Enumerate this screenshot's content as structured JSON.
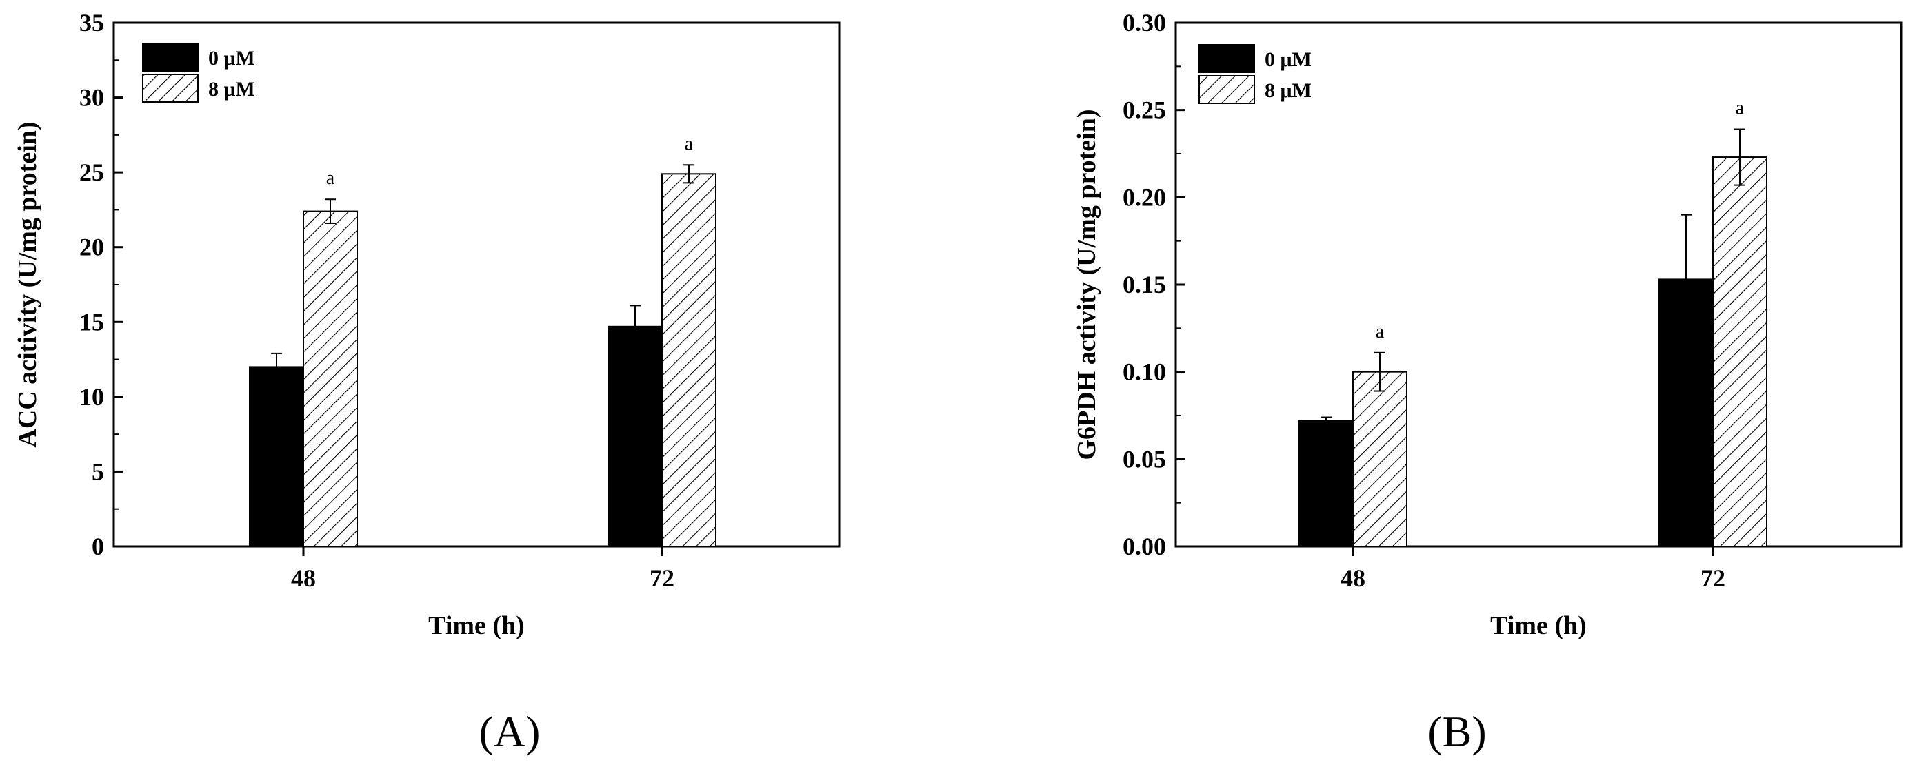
{
  "chart_data": [
    {
      "type": "bar",
      "panel_label": "(A)",
      "categories": [
        "48",
        "72"
      ],
      "series": [
        {
          "name": "0 μM",
          "values": [
            12.0,
            14.7
          ],
          "errors": [
            0.9,
            1.4
          ],
          "sig": [
            "",
            ""
          ],
          "fill": "solid-black"
        },
        {
          "name": "8 μM",
          "values": [
            22.4,
            24.9
          ],
          "errors": [
            0.8,
            0.6
          ],
          "sig": [
            "a",
            "a"
          ],
          "fill": "hatched"
        }
      ],
      "xlabel": "Time (h)",
      "ylabel": "ACC acitivity (U/mg protein)",
      "ylim": [
        0,
        35
      ],
      "yticks": [
        "0",
        "5",
        "10",
        "15",
        "20",
        "25",
        "30",
        "35"
      ],
      "legend_position": "top-left",
      "grid": false
    },
    {
      "type": "bar",
      "panel_label": "(B)",
      "categories": [
        "48",
        "72"
      ],
      "series": [
        {
          "name": "0 μM",
          "values": [
            0.072,
            0.153
          ],
          "errors": [
            0.002,
            0.037
          ],
          "sig": [
            "",
            ""
          ],
          "fill": "solid-black"
        },
        {
          "name": "8 μM",
          "values": [
            0.1,
            0.223
          ],
          "errors": [
            0.011,
            0.016
          ],
          "sig": [
            "a",
            "a"
          ],
          "fill": "hatched"
        }
      ],
      "xlabel": "Time (h)",
      "ylabel": "G6PDH activity (U/mg protein)",
      "ylim": [
        0,
        0.3
      ],
      "yticks": [
        "0.00",
        "0.05",
        "0.10",
        "0.15",
        "0.20",
        "0.25",
        "0.30"
      ],
      "legend_position": "top-left",
      "grid": false
    }
  ]
}
